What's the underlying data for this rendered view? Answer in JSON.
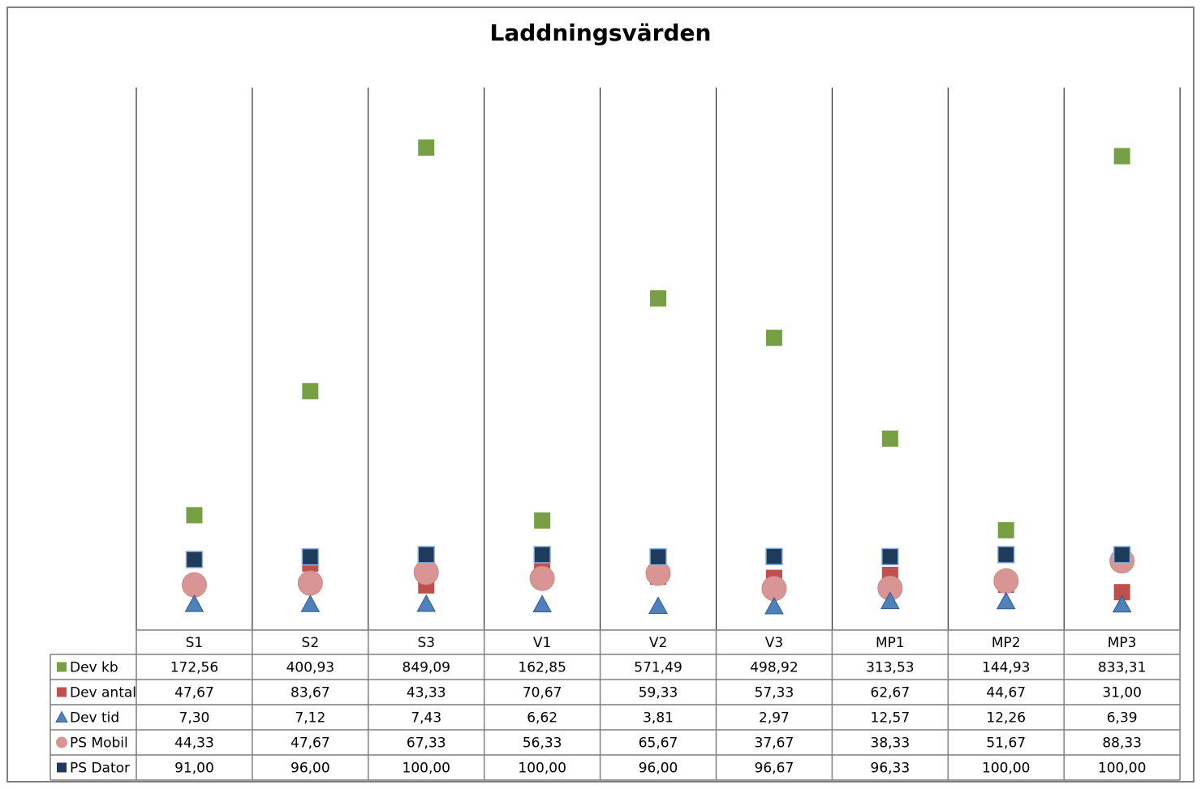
{
  "chart_data": {
    "type": "scatter",
    "title": "Laddningsvärden",
    "xlabel": "",
    "ylabel": "",
    "ylim": [
      0,
      900
    ],
    "grid": false,
    "legend": "data-table",
    "categories": [
      "S1",
      "S2",
      "S3",
      "V1",
      "V2",
      "V3",
      "MP1",
      "MP2",
      "MP3"
    ],
    "series": [
      {
        "name": "Dev kb",
        "marker": "square",
        "color": "#77a045",
        "values": [
          172.56,
          400.93,
          849.09,
          162.85,
          571.49,
          498.92,
          313.53,
          144.93,
          833.31
        ],
        "labels": [
          "172,56",
          "400,93",
          "849,09",
          "162,85",
          "571,49",
          "498,92",
          "313,53",
          "144,93",
          "833,31"
        ]
      },
      {
        "name": "Dev antal",
        "marker": "square",
        "color": "#c0504d",
        "values": [
          47.67,
          83.67,
          43.33,
          70.67,
          59.33,
          57.33,
          62.67,
          44.67,
          31.0
        ],
        "labels": [
          "47,67",
          "83,67",
          "43,33",
          "70,67",
          "59,33",
          "57,33",
          "62,67",
          "44,67",
          "31,00"
        ]
      },
      {
        "name": "Dev tid",
        "marker": "triangle",
        "color": "#4f81bd",
        "values": [
          7.3,
          7.12,
          7.43,
          6.62,
          3.81,
          2.97,
          12.57,
          12.26,
          6.39
        ],
        "labels": [
          "7,30",
          "7,12",
          "7,43",
          "6,62",
          "3,81",
          "2,97",
          "12,57",
          "12,26",
          "6,39"
        ]
      },
      {
        "name": "PS Mobil",
        "marker": "circle",
        "color": "#d99594",
        "values": [
          44.33,
          47.67,
          67.33,
          56.33,
          65.67,
          37.67,
          38.33,
          51.67,
          88.33
        ],
        "labels": [
          "44,33",
          "47,67",
          "67,33",
          "56,33",
          "65,67",
          "37,67",
          "38,33",
          "51,67",
          "88,33"
        ]
      },
      {
        "name": "PS Dator",
        "marker": "square",
        "color": "#1f3b5c",
        "values": [
          91.0,
          96.0,
          100.0,
          100.0,
          96.0,
          96.67,
          96.33,
          100.0,
          100.0
        ],
        "labels": [
          "91,00",
          "96,00",
          "100,00",
          "100,00",
          "96,00",
          "96,67",
          "96,33",
          "100,00",
          "100,00"
        ]
      }
    ]
  }
}
